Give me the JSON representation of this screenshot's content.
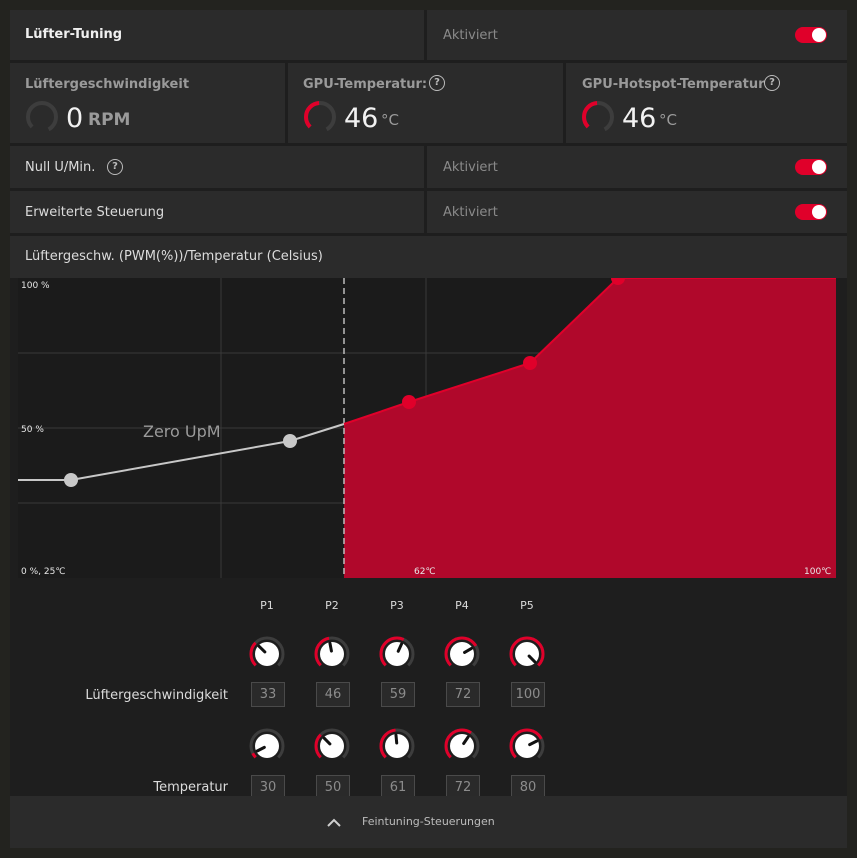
{
  "header": {
    "title": "Lüfter-Tuning",
    "status": "Aktiviert",
    "toggle_on": true
  },
  "stats": [
    {
      "label": "Lüftergeschwindigkeit",
      "value": "0",
      "unit": "RPM",
      "gauge": 0
    },
    {
      "label": "GPU-Temperatur:",
      "value": "46",
      "unit": "°C",
      "gauge": 0.46
    },
    {
      "label": "GPU-Hotspot-Temperatur",
      "value": "46",
      "unit": "°C",
      "gauge": 0.46
    }
  ],
  "settings": [
    {
      "label": "Null U/Min.",
      "status": "Aktiviert",
      "has_help": true
    },
    {
      "label": "Erweiterte Steuerung",
      "status": "Aktiviert",
      "has_help": false
    }
  ],
  "chart_title": "Lüftergeschw. (PWM(%))/Temperatur (Celsius)",
  "chart_data": {
    "type": "area",
    "x_label_min": "0 %, 25℃",
    "x_label_mid": "62℃",
    "x_label_max": "100℃",
    "y_label_max": "100 %",
    "y_label_mid": "50 %",
    "zero_rpm_label": "Zero UpM",
    "x_range": [
      25,
      100
    ],
    "y_range": [
      0,
      100
    ],
    "zero_rpm_threshold_temp": 55,
    "points": [
      {
        "name": "P1",
        "temp": 30,
        "speed": 33
      },
      {
        "name": "P2",
        "temp": 50,
        "speed": 46
      },
      {
        "name": "P3",
        "temp": 61,
        "speed": 59
      },
      {
        "name": "P4",
        "temp": 72,
        "speed": 72
      },
      {
        "name": "P5",
        "temp": 80,
        "speed": 100
      }
    ]
  },
  "tuning": {
    "points": [
      "P1",
      "P2",
      "P3",
      "P4",
      "P5"
    ],
    "speed_label": "Lüftergeschwindigkeit",
    "temp_label": "Temperatur",
    "speed_values": [
      "33",
      "46",
      "59",
      "72",
      "100"
    ],
    "temp_values": [
      "30",
      "50",
      "61",
      "72",
      "80"
    ]
  },
  "footer": {
    "label": "Feintuning-Steuerungen"
  },
  "colors": {
    "accent": "#e0002a",
    "fill": "#b0082b",
    "grey_curve": "#c8c8c8"
  }
}
